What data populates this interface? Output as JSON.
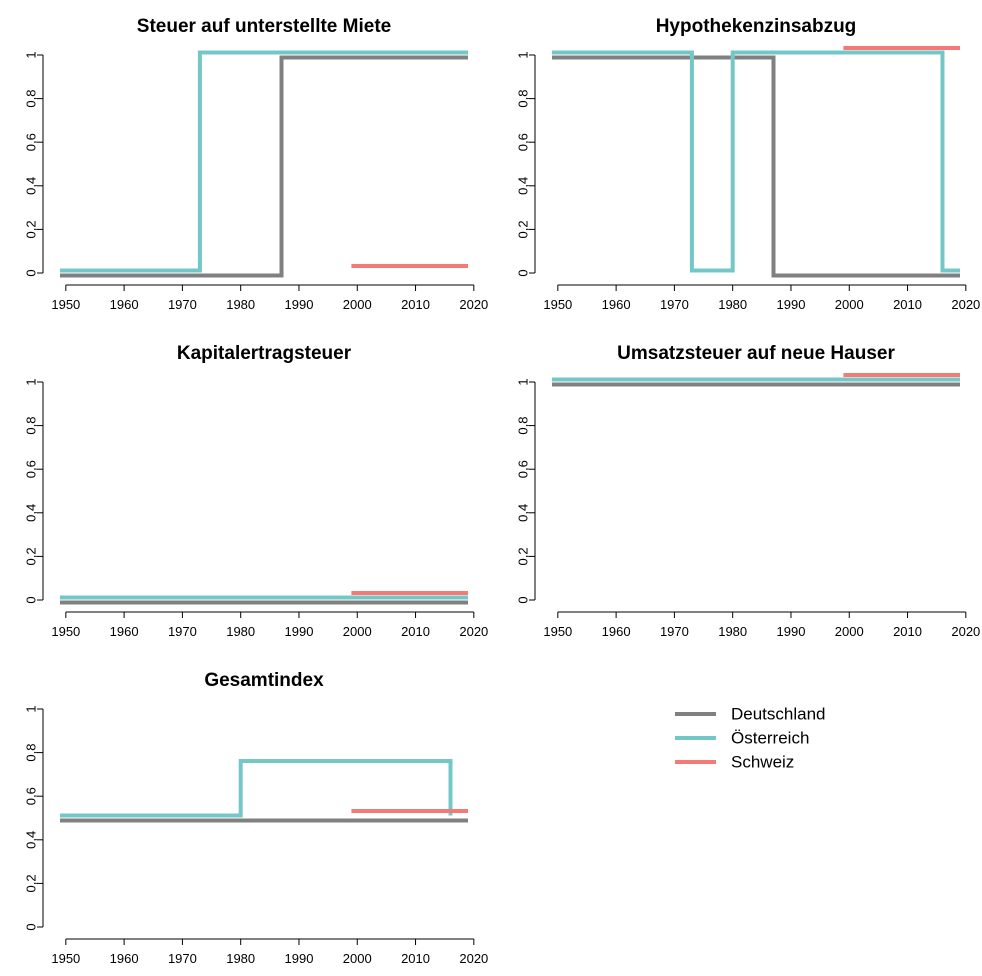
{
  "chart_data": [
    {
      "type": "line",
      "title": "Steuer auf unterstellte Miete",
      "xlim": [
        1949,
        2019
      ],
      "ylim": [
        0,
        1
      ],
      "x_ticks": [
        "1950",
        "1960",
        "1970",
        "1980",
        "1990",
        "2000",
        "2010",
        "2020"
      ],
      "y_ticks": [
        "0",
        "0,2",
        "0,4",
        "0,6",
        "0,8",
        "1"
      ],
      "series": [
        {
          "name": "Deutschland",
          "x": [
            1949,
            1987,
            1987,
            2019
          ],
          "y": [
            0,
            0,
            1,
            1
          ]
        },
        {
          "name": "Österreich",
          "x": [
            1949,
            1973,
            1973,
            2019
          ],
          "y": [
            0,
            0,
            1,
            1
          ]
        },
        {
          "name": "Schweiz",
          "x": [
            1999,
            2019
          ],
          "y": [
            0,
            0
          ]
        }
      ]
    },
    {
      "type": "line",
      "title": "Hypothekenzinsabzug",
      "xlim": [
        1949,
        2019
      ],
      "ylim": [
        0,
        1
      ],
      "x_ticks": [
        "1950",
        "1960",
        "1970",
        "1980",
        "1990",
        "2000",
        "2010",
        "2020"
      ],
      "y_ticks": [
        "0",
        "0,2",
        "0,4",
        "0,6",
        "0,8",
        "1"
      ],
      "series": [
        {
          "name": "Deutschland",
          "x": [
            1949,
            1987,
            1987,
            2019
          ],
          "y": [
            1,
            1,
            0,
            0
          ]
        },
        {
          "name": "Österreich",
          "x": [
            1949,
            1973,
            1973,
            1980,
            1980,
            2016,
            2016,
            2019
          ],
          "y": [
            1,
            1,
            0,
            0,
            1,
            1,
            0,
            0
          ]
        },
        {
          "name": "Schweiz",
          "x": [
            1999,
            2019
          ],
          "y": [
            1,
            1
          ]
        }
      ]
    },
    {
      "type": "line",
      "title": "Kapitalertragsteuer",
      "xlim": [
        1949,
        2019
      ],
      "ylim": [
        0,
        1
      ],
      "x_ticks": [
        "1950",
        "1960",
        "1970",
        "1980",
        "1990",
        "2000",
        "2010",
        "2020"
      ],
      "y_ticks": [
        "0",
        "0,2",
        "0,4",
        "0,6",
        "0,8",
        "1"
      ],
      "series": [
        {
          "name": "Deutschland",
          "x": [
            1949,
            2019
          ],
          "y": [
            0,
            0
          ]
        },
        {
          "name": "Österreich",
          "x": [
            1949,
            2019
          ],
          "y": [
            0,
            0
          ]
        },
        {
          "name": "Schweiz",
          "x": [
            1999,
            2019
          ],
          "y": [
            0,
            0
          ]
        }
      ]
    },
    {
      "type": "line",
      "title": "Umsatzsteuer auf neue Hauser",
      "xlim": [
        1949,
        2019
      ],
      "ylim": [
        0,
        1
      ],
      "x_ticks": [
        "1950",
        "1960",
        "1970",
        "1980",
        "1990",
        "2000",
        "2010",
        "2020"
      ],
      "y_ticks": [
        "0",
        "0,2",
        "0,4",
        "0,6",
        "0,8",
        "1"
      ],
      "series": [
        {
          "name": "Deutschland",
          "x": [
            1949,
            2019
          ],
          "y": [
            1,
            1
          ]
        },
        {
          "name": "Österreich",
          "x": [
            1949,
            2019
          ],
          "y": [
            1,
            1
          ]
        },
        {
          "name": "Schweiz",
          "x": [
            1999,
            2019
          ],
          "y": [
            1,
            1
          ]
        }
      ]
    },
    {
      "type": "line",
      "title": "Gesamtindex",
      "xlim": [
        1949,
        2019
      ],
      "ylim": [
        0,
        1
      ],
      "x_ticks": [
        "1950",
        "1960",
        "1970",
        "1980",
        "1990",
        "2000",
        "2010",
        "2020"
      ],
      "y_ticks": [
        "0",
        "0,2",
        "0,4",
        "0,6",
        "0,8",
        "1"
      ],
      "series": [
        {
          "name": "Deutschland",
          "x": [
            1949,
            2019
          ],
          "y": [
            0.5,
            0.5
          ]
        },
        {
          "name": "Österreich",
          "x": [
            1949,
            1980,
            1980,
            2016,
            2016
          ],
          "y": [
            0.5,
            0.5,
            0.75,
            0.75,
            0.5
          ]
        },
        {
          "name": "Schweiz",
          "x": [
            1999,
            2019
          ],
          "y": [
            0.5,
            0.5
          ]
        }
      ]
    }
  ],
  "legend": {
    "placement": "bottom-right",
    "items": [
      {
        "label": "Deutschland",
        "color": "#808080"
      },
      {
        "label": "Österreich",
        "color": "#74c7c7"
      },
      {
        "label": "Schweiz",
        "color": "#f47a78"
      }
    ]
  }
}
